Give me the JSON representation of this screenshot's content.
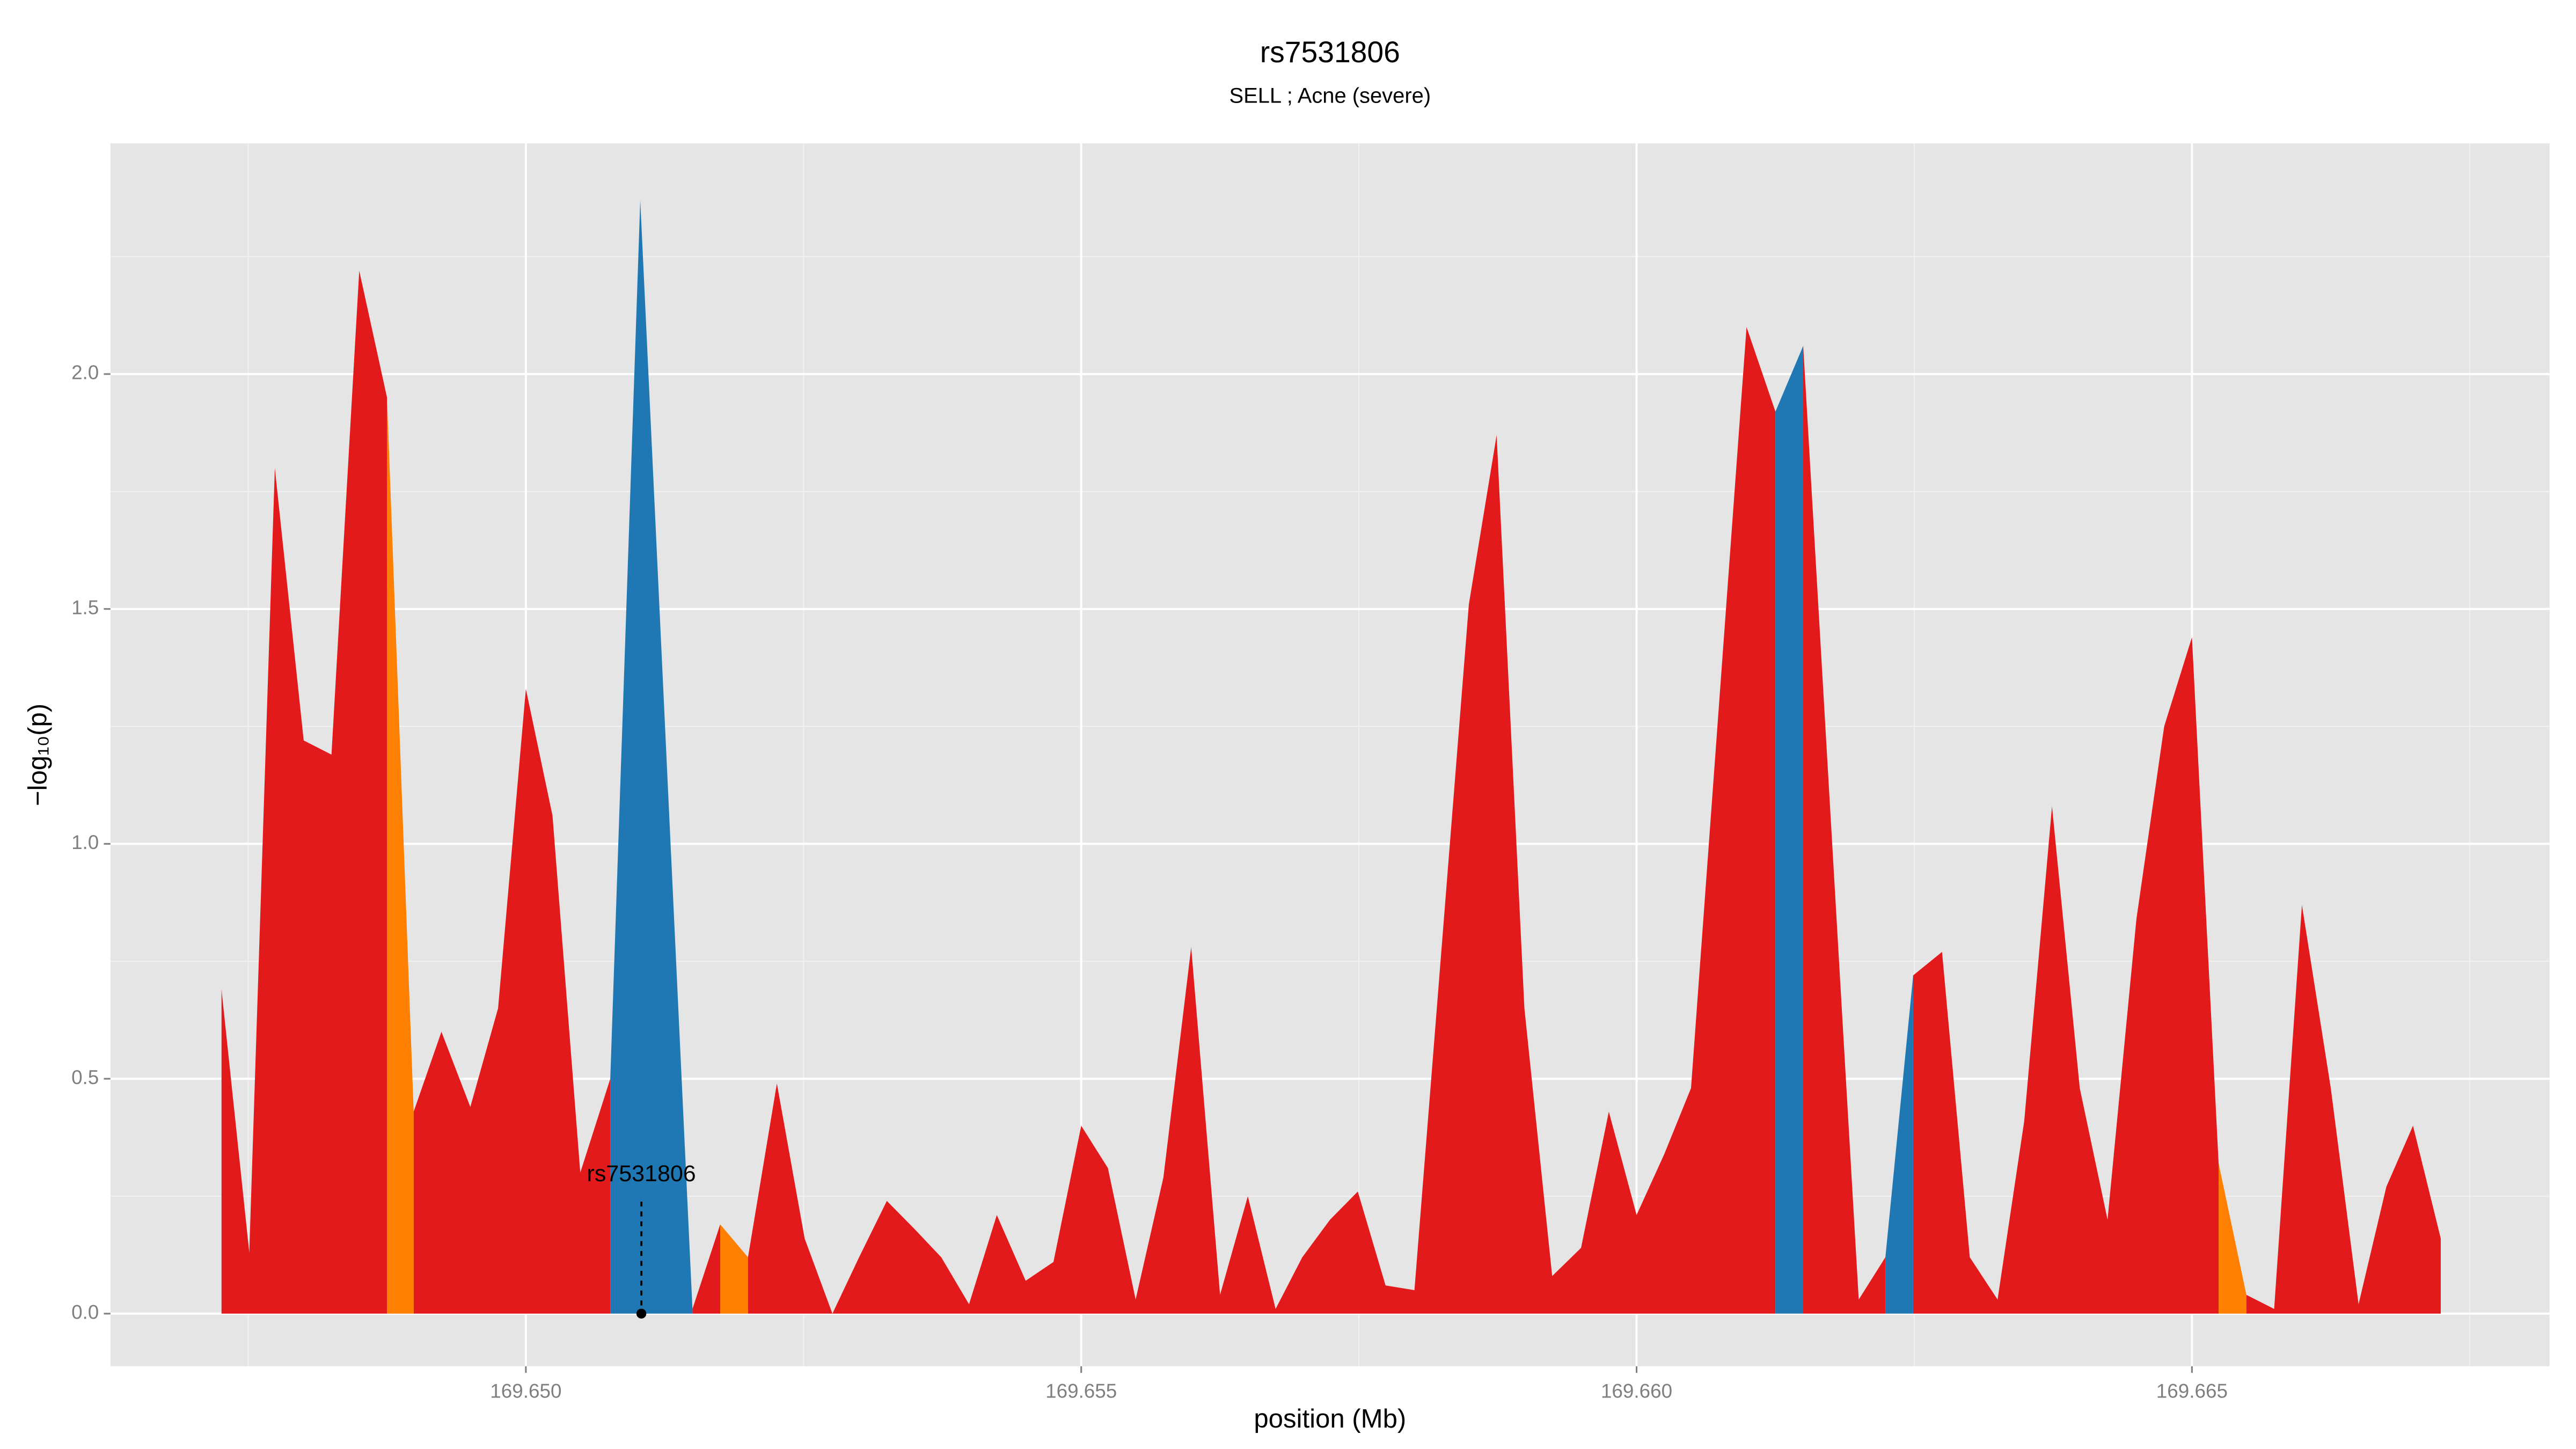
{
  "chart_data": {
    "type": "area",
    "title": "rs7531806",
    "subtitle": "SELL ; Acne (severe)",
    "x_label": "position (Mb)",
    "y_label": "−log₁₀(p)",
    "xlim": [
      169.64626,
      169.66822
    ],
    "ylim": [
      -0.112,
      2.491
    ],
    "xticks": [
      {
        "value": 169.65,
        "label": "169.650"
      },
      {
        "value": 169.655,
        "label": "169.655"
      },
      {
        "value": 169.66,
        "label": "169.660"
      },
      {
        "value": 169.665,
        "label": "169.665"
      }
    ],
    "yticks": [
      {
        "value": 0,
        "label": "0.0"
      },
      0.5,
      {
        "value": 1,
        "label": "1.0"
      },
      1.5,
      {
        "value": 2,
        "label": "2.0"
      }
    ],
    "minor_xticks": [
      169.6475,
      169.6525,
      169.6575,
      169.6625,
      169.6675
    ],
    "minor_yticks": [
      0.25,
      0.75,
      1.25,
      1.75,
      2.25
    ],
    "grid": true,
    "series": [
      {
        "color": "#e31a1c",
        "x": [
          169.64726,
          169.64751,
          169.64774,
          169.648,
          169.64825,
          169.6485,
          169.64875,
          null,
          169.64899,
          169.64924,
          169.6495,
          169.64975,
          169.65,
          169.65024,
          169.65049,
          169.65076,
          null,
          169.6515,
          169.65175,
          null,
          169.652,
          169.65226,
          169.65251,
          169.65276,
          169.653,
          169.65325,
          169.6535,
          169.65374,
          169.65399,
          169.65424,
          169.6545,
          169.65475,
          169.655,
          169.65524,
          169.65549,
          169.65574,
          169.65599,
          169.65625,
          169.6565,
          169.65675,
          169.65699,
          169.65724,
          169.65749,
          169.65774,
          169.658,
          169.65849,
          169.65874,
          169.65899,
          169.65924,
          169.6595,
          169.65975,
          169.66,
          169.66025,
          169.66049,
          169.66099,
          169.66125,
          null,
          169.6615,
          169.662,
          169.66224,
          null,
          169.66249,
          169.66275,
          169.663,
          169.66325,
          169.66349,
          169.66374,
          169.66399,
          169.66424,
          169.6645,
          169.66475,
          169.665,
          169.66524,
          null,
          169.66549,
          169.66574,
          169.66599,
          169.66625,
          169.6665,
          169.66675,
          169.66699,
          169.66724
        ],
        "values": [
          0.69,
          0.13,
          1.8,
          1.22,
          1.19,
          2.22,
          1.95,
          null,
          0.43,
          0.6,
          0.44,
          0.65,
          1.33,
          1.06,
          0.3,
          0.5,
          null,
          0.01,
          0.19,
          null,
          0.12,
          0.49,
          0.16,
          0.0,
          0.12,
          0.24,
          0.18,
          0.12,
          0.02,
          0.21,
          0.07,
          0.11,
          0.4,
          0.31,
          0.03,
          0.29,
          0.78,
          0.04,
          0.25,
          0.01,
          0.12,
          0.2,
          0.26,
          0.06,
          0.05,
          1.51,
          1.87,
          0.65,
          0.08,
          0.14,
          0.43,
          0.21,
          0.34,
          0.48,
          2.1,
          1.92,
          null,
          2.06,
          0.03,
          0.12,
          null,
          0.72,
          0.77,
          0.12,
          0.03,
          0.41,
          1.08,
          0.48,
          0.2,
          0.84,
          1.25,
          1.44,
          0.32,
          null,
          0.04,
          0.01,
          0.87,
          0.48,
          0.02,
          0.27,
          0.4,
          0.16
        ]
      },
      {
        "color": "#ff7f00",
        "x": [
          169.64875,
          169.64899,
          null,
          169.65175,
          169.652,
          null,
          169.66524,
          169.66549
        ],
        "values": [
          1.95,
          0.43,
          null,
          0.19,
          0.12,
          null,
          0.32,
          0.04
        ]
      },
      {
        "color": "#1f78b4",
        "x": [
          169.65076,
          169.65103,
          169.6515,
          null,
          169.66125,
          169.6615,
          null,
          169.66224,
          169.66249
        ],
        "values": [
          0.5,
          2.37,
          0.01,
          null,
          1.92,
          2.06,
          null,
          0.12,
          0.72
        ]
      }
    ],
    "annotation": {
      "text": "rs7531806",
      "x": 169.65104,
      "y": 0
    }
  }
}
